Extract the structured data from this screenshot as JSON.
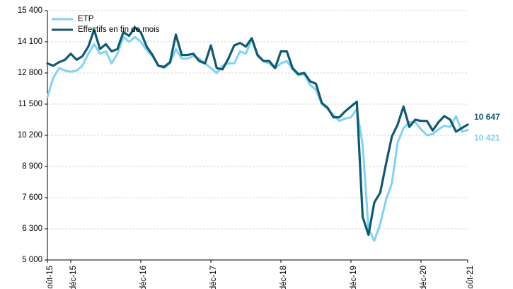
{
  "chart_data": {
    "type": "line",
    "title": "",
    "xlabel": "",
    "ylabel": "",
    "ylim": [
      5000,
      15400
    ],
    "y_ticks": [
      5000,
      6300,
      7600,
      8900,
      10200,
      11500,
      12800,
      14100,
      15400
    ],
    "y_tick_labels": [
      "5 000",
      "6 300",
      "7 600",
      "8 900",
      "10 200",
      "11 500",
      "12 800",
      "14 100",
      "15 400"
    ],
    "x_labels": [
      {
        "index": 0,
        "label": "août-15"
      },
      {
        "index": 4,
        "label": "déc-15"
      },
      {
        "index": 16,
        "label": "déc-16"
      },
      {
        "index": 28,
        "label": "déc-17"
      },
      {
        "index": 40,
        "label": "déc-18"
      },
      {
        "index": 52,
        "label": "déc-19"
      },
      {
        "index": 64,
        "label": "déc-20"
      },
      {
        "index": 72,
        "label": "août-21"
      }
    ],
    "x_count": 73,
    "legend_position": "top-left",
    "grid": "horizontal",
    "series": [
      {
        "name": "ETP",
        "color": "#7fd3f4",
        "values": [
          11800,
          12600,
          13000,
          12900,
          12850,
          12900,
          13100,
          13600,
          14000,
          13600,
          13700,
          13200,
          13600,
          14300,
          14100,
          14300,
          14100,
          13750,
          13500,
          13100,
          13000,
          13200,
          13800,
          13400,
          13400,
          13500,
          13400,
          13200,
          13000,
          12800,
          13100,
          13200,
          13200,
          13700,
          13600,
          14200,
          13500,
          13300,
          13200,
          13000,
          13200,
          13300,
          12950,
          12700,
          12750,
          12300,
          12100,
          11500,
          11300,
          11050,
          10800,
          10900,
          10950,
          11300,
          9800,
          6300,
          5800,
          6500,
          7500,
          8200,
          9900,
          10500,
          10750,
          10750,
          10450,
          10200,
          10250,
          10450,
          10600,
          10550,
          11000,
          10350,
          10421
        ]
      },
      {
        "name": "Effectifs en fin de mois",
        "color": "#0e5a73",
        "values": [
          13200,
          13100,
          13250,
          13350,
          13600,
          13350,
          13500,
          13900,
          14600,
          13800,
          14000,
          13700,
          13800,
          14500,
          14350,
          14700,
          14500,
          13900,
          13550,
          13100,
          13050,
          13250,
          14400,
          13550,
          13550,
          13600,
          13300,
          13200,
          13950,
          13000,
          12950,
          13400,
          13950,
          14050,
          13900,
          14250,
          13550,
          13300,
          13300,
          13000,
          13700,
          13700,
          13000,
          12750,
          12800,
          12450,
          12350,
          11550,
          11350,
          10950,
          10950,
          11200,
          11400,
          11600,
          6800,
          6050,
          7400,
          7800,
          9000,
          10150,
          10650,
          11400,
          10550,
          10850,
          10800,
          10800,
          10400,
          10750,
          11000,
          10850,
          10350,
          10500,
          10647
        ]
      }
    ],
    "end_labels": [
      {
        "series": 1,
        "text": "10 647",
        "color": "#1a5e78"
      },
      {
        "series": 0,
        "text": "10 421",
        "color": "#7fd3f4"
      }
    ]
  }
}
